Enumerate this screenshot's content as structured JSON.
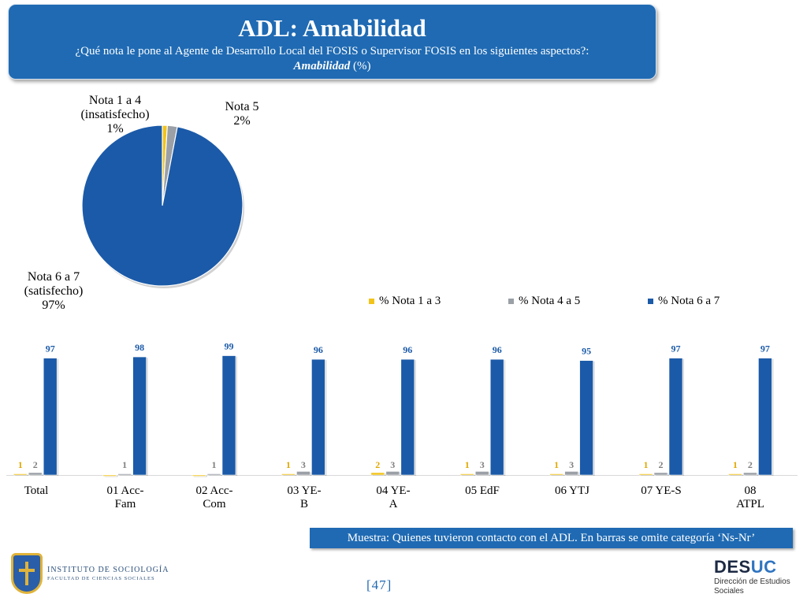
{
  "header": {
    "title": "ADL: Amabilidad",
    "question": "¿Qué nota le pone al Agente de Desarrollo Local del FOSIS o Supervisor FOSIS en los siguientes aspectos?:",
    "aspect": "Amabilidad",
    "unit": "(%)"
  },
  "chart_data": [
    {
      "type": "pie",
      "slices": [
        {
          "line1": "Nota 1 a 4",
          "line2": "(insatisfecho)",
          "value": 1,
          "label": "1%",
          "color": "#f2c31a"
        },
        {
          "line1": "Nota 5",
          "line2": "",
          "value": 2,
          "label": "2%",
          "color": "#9aa0a6"
        },
        {
          "line1": "Nota 6 a 7",
          "line2": "(satisfecho)",
          "value": 97,
          "label": "97%",
          "color": "#1b5aa8"
        }
      ]
    },
    {
      "type": "bar",
      "categories": [
        "Total",
        "01 Acc-Fam",
        "02 Acc-Com",
        "03 YE-B",
        "04 YE-A",
        "05 EdF",
        "06 YTJ",
        "07 YE-S",
        "08 ATPL"
      ],
      "category_lines": [
        [
          "Total"
        ],
        [
          "01 Acc-",
          "Fam"
        ],
        [
          "02 Acc-",
          "Com"
        ],
        [
          "03 YE-",
          "B"
        ],
        [
          "04 YE-",
          "A"
        ],
        [
          "05 EdF"
        ],
        [
          "06 YTJ"
        ],
        [
          "07 YE-S"
        ],
        [
          "08",
          "ATPL"
        ]
      ],
      "series": [
        {
          "name": "% Nota 1 a 3",
          "color": "#f2c31a",
          "label_color": "#e0a800",
          "values": [
            1,
            0,
            0,
            1,
            2,
            1,
            1,
            1,
            1
          ],
          "show_labels": [
            true,
            false,
            false,
            true,
            true,
            true,
            true,
            true,
            true
          ]
        },
        {
          "name": "% Nota 4 a 5",
          "color": "#9aa0a6",
          "label_color": "#7f7f7f",
          "values": [
            2,
            1,
            1,
            3,
            3,
            3,
            3,
            2,
            2
          ],
          "show_labels": [
            true,
            true,
            true,
            true,
            true,
            true,
            true,
            true,
            true
          ]
        },
        {
          "name": "% Nota 6 a 7",
          "color": "#1b5aa8",
          "label_color": "#1b5aa8",
          "values": [
            97,
            98,
            99,
            96,
            96,
            96,
            95,
            97,
            97
          ],
          "show_labels": [
            true,
            true,
            true,
            true,
            true,
            true,
            true,
            true,
            true
          ]
        }
      ],
      "ylim": [
        0,
        100
      ],
      "grid": false,
      "legend": "top-right"
    }
  ],
  "footer": {
    "sample_note": "Muestra: Quienes tuvieron contacto con el ADL. En barras se omite categoría ‘Ns-Nr’",
    "page": "[47]",
    "institute_line1": "INSTITUTO DE SOCIOLOGÍA",
    "institute_line2": "FACULTAD DE CIENCIAS SOCIALES",
    "brand_a": "DES",
    "brand_b": "UC",
    "brand_sub1": "Dirección de Estudios",
    "brand_sub2": "Sociales"
  }
}
